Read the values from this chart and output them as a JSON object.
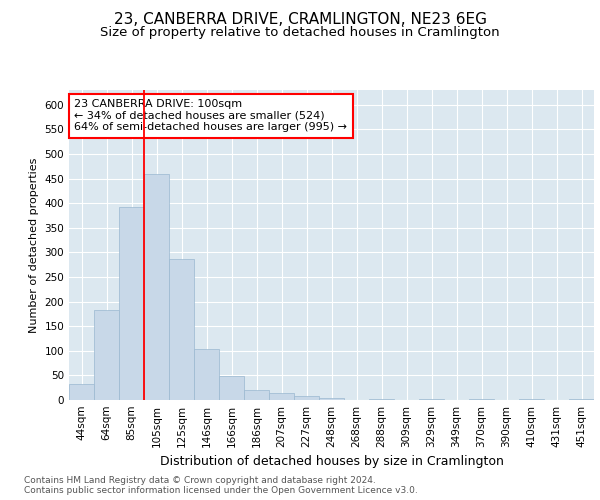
{
  "title_line1": "23, CANBERRA DRIVE, CRAMLINGTON, NE23 6EG",
  "title_line2": "Size of property relative to detached houses in Cramlington",
  "xlabel": "Distribution of detached houses by size in Cramlington",
  "ylabel": "Number of detached properties",
  "footnote": "Contains HM Land Registry data © Crown copyright and database right 2024.\nContains public sector information licensed under the Open Government Licence v3.0.",
  "categories": [
    "44sqm",
    "64sqm",
    "85sqm",
    "105sqm",
    "125sqm",
    "146sqm",
    "166sqm",
    "186sqm",
    "207sqm",
    "227sqm",
    "248sqm",
    "268sqm",
    "288sqm",
    "309sqm",
    "329sqm",
    "349sqm",
    "370sqm",
    "390sqm",
    "410sqm",
    "431sqm",
    "451sqm"
  ],
  "values": [
    33,
    183,
    393,
    460,
    287,
    104,
    48,
    21,
    14,
    8,
    5,
    0,
    3,
    0,
    3,
    0,
    3,
    0,
    3,
    0,
    3
  ],
  "bar_color": "#c8d8e8",
  "bar_edge_color": "#9ab8d0",
  "vline_color": "red",
  "vline_index": 3,
  "annotation_text": "23 CANBERRA DRIVE: 100sqm\n← 34% of detached houses are smaller (524)\n64% of semi-detached houses are larger (995) →",
  "annotation_box_color": "white",
  "annotation_box_edge_color": "red",
  "ylim": [
    0,
    630
  ],
  "yticks": [
    0,
    50,
    100,
    150,
    200,
    250,
    300,
    350,
    400,
    450,
    500,
    550,
    600
  ],
  "background_color": "#ffffff",
  "plot_bg_color": "#dce8f0",
  "title1_fontsize": 11,
  "title2_fontsize": 9.5,
  "xlabel_fontsize": 9,
  "ylabel_fontsize": 8,
  "tick_fontsize": 7.5,
  "annotation_fontsize": 8,
  "footnote_fontsize": 6.5
}
